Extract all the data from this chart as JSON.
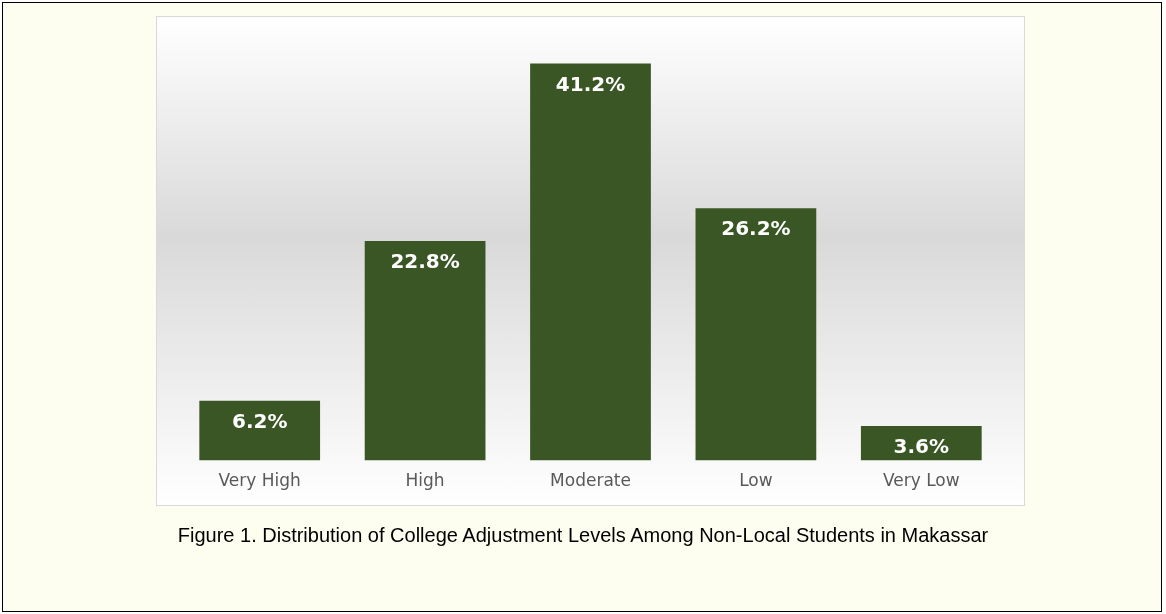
{
  "chart_data": {
    "type": "bar",
    "categories": [
      "Very High",
      "High",
      "Moderate",
      "Low",
      "Very Low"
    ],
    "values": [
      6.2,
      22.8,
      41.2,
      26.2,
      3.6
    ],
    "value_labels": [
      "6.2%",
      "22.8%",
      "41.2%",
      "26.2%",
      "3.6%"
    ],
    "color": "#3a5625",
    "annotations": [
      "Figure 1. Distribution of College Adjustment Levels Among Non-Local Students in Makassar"
    ]
  }
}
